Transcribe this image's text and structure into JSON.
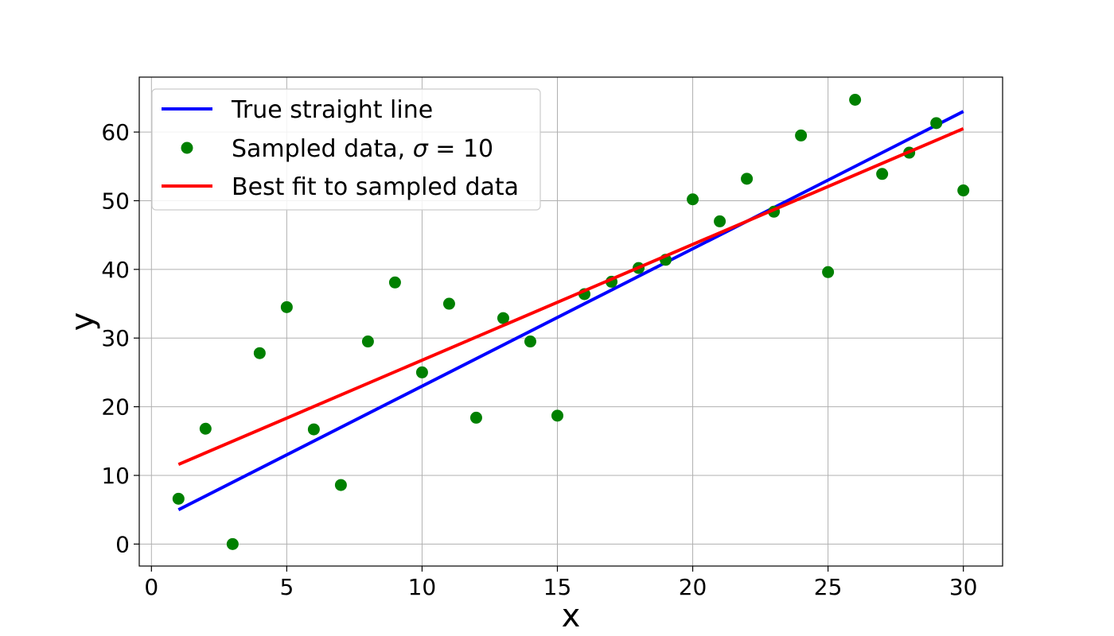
{
  "chart_data": {
    "type": "scatter",
    "title": "",
    "xlabel": "x",
    "ylabel": "y",
    "xlim": [
      -0.45,
      31.45
    ],
    "ylim": [
      -3.2,
      68
    ],
    "xticks": [
      0,
      5,
      10,
      15,
      20,
      25,
      30
    ],
    "yticks": [
      0,
      10,
      20,
      30,
      40,
      50,
      60
    ],
    "grid": true,
    "legend_position": "top-left",
    "series": [
      {
        "name": "True straight line",
        "kind": "line",
        "color": "#0000ff",
        "x": [
          1,
          30
        ],
        "y": [
          5,
          63
        ]
      },
      {
        "name": "Sampled data, σ = 10",
        "name_prefix": "Sampled data, ",
        "name_symbol": "σ",
        "name_suffix": " = 10",
        "kind": "scatter",
        "color": "#008000",
        "x": [
          1,
          2,
          3,
          4,
          5,
          6,
          7,
          8,
          9,
          10,
          11,
          12,
          13,
          14,
          15,
          16,
          17,
          18,
          19,
          20,
          21,
          22,
          23,
          24,
          25,
          26,
          27,
          28,
          29,
          30
        ],
        "y": [
          6.6,
          16.8,
          0,
          27.8,
          34.5,
          16.7,
          8.6,
          29.5,
          38.1,
          25,
          35,
          18.4,
          32.9,
          29.5,
          18.7,
          36.4,
          38.2,
          40.2,
          41.4,
          50.2,
          47,
          53.2,
          48.4,
          59.5,
          39.6,
          64.7,
          53.9,
          57,
          61.3,
          51.5
        ]
      },
      {
        "name": "Best fit to sampled data",
        "kind": "line",
        "color": "#ff0000",
        "x": [
          1,
          30
        ],
        "y": [
          11.6,
          60.5
        ]
      }
    ]
  }
}
